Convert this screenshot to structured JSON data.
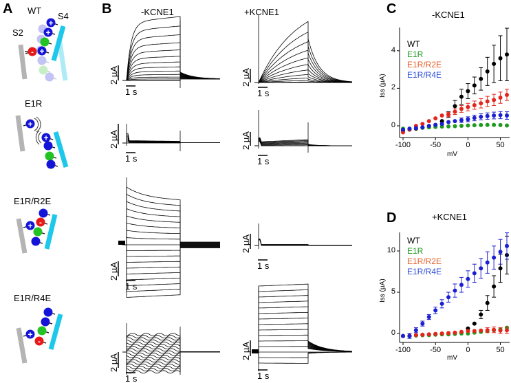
{
  "panels": {
    "A": {
      "letter": "A",
      "wt": "WT",
      "s4": "S4",
      "s2": "S2",
      "e1r": "E1R",
      "e1r_r2e": "E1R/R2E",
      "e1r_r4e": "E1R/R4E",
      "plus": "+",
      "minus": "-"
    },
    "B": {
      "letter": "B",
      "col1": "-KCNE1",
      "col2": "+KCNE1",
      "scale_current": "2 µA",
      "scale_time": "1 s"
    },
    "C": {
      "letter": "C"
    },
    "D": {
      "letter": "D"
    }
  },
  "colors": {
    "WT": "#000000",
    "E1R": "#1f9a1f",
    "E1R/R2E": "#e3261c",
    "E1R/R4E": "#1a1fd0",
    "E1R/R2E_legend": "#e8602c",
    "E1R/R4E_legend": "#2f4fd8",
    "S4": "#1ec8ea",
    "S2": "#b4b4b4"
  },
  "chart_data": [
    {
      "type": "scatter",
      "title": "-KCNE1",
      "xlabel": "mV",
      "ylabel": "Iss (µA)",
      "xlim": [
        -100,
        60
      ],
      "ylim": [
        -0.6,
        5.2
      ],
      "xticks": [
        -100,
        -50,
        0,
        50
      ],
      "yticks": [
        0,
        2,
        4
      ],
      "legend": "top-left",
      "x": [
        -100,
        -90,
        -80,
        -70,
        -60,
        -50,
        -40,
        -30,
        -20,
        -10,
        0,
        10,
        20,
        30,
        40,
        50,
        60
      ],
      "series": [
        {
          "name": "WT",
          "values": [
            -0.25,
            -0.2,
            -0.15,
            -0.1,
            -0.05,
            0.05,
            0.25,
            0.6,
            1.05,
            1.55,
            1.85,
            2.15,
            2.5,
            2.9,
            3.3,
            3.6,
            3.8
          ],
          "errors": [
            0.05,
            0.05,
            0.05,
            0.05,
            0.05,
            0.05,
            0.08,
            0.15,
            0.3,
            0.4,
            0.4,
            0.45,
            0.6,
            0.75,
            1.0,
            1.2,
            1.4
          ]
        },
        {
          "name": "E1R",
          "values": [
            -0.15,
            -0.15,
            -0.12,
            -0.1,
            -0.08,
            -0.06,
            -0.04,
            -0.03,
            -0.02,
            0,
            0.02,
            0.03,
            0.04,
            0.05,
            0.05,
            0.04,
            0.02
          ],
          "errors": [
            0.03,
            0.03,
            0.03,
            0.03,
            0.03,
            0.03,
            0.03,
            0.03,
            0.03,
            0.03,
            0.03,
            0.03,
            0.03,
            0.03,
            0.03,
            0.03,
            0.03
          ]
        },
        {
          "name": "E1R/R2E",
          "values": [
            -0.35,
            -0.2,
            0,
            0.1,
            0.25,
            0.4,
            0.55,
            0.6,
            0.75,
            0.9,
            1.0,
            1.1,
            1.2,
            1.3,
            1.38,
            1.5,
            1.65
          ],
          "errors": [
            0.05,
            0.05,
            0.05,
            0.05,
            0.06,
            0.08,
            0.1,
            0.12,
            0.15,
            0.18,
            0.2,
            0.22,
            0.25,
            0.27,
            0.3,
            0.3,
            0.3
          ]
        },
        {
          "name": "E1R/R4E",
          "values": [
            -0.2,
            -0.15,
            -0.12,
            -0.08,
            0,
            0.05,
            0.1,
            0.2,
            0.25,
            0.3,
            0.35,
            0.42,
            0.48,
            0.52,
            0.55,
            0.57,
            0.55
          ],
          "errors": [
            0.04,
            0.04,
            0.04,
            0.04,
            0.05,
            0.06,
            0.07,
            0.08,
            0.1,
            0.12,
            0.13,
            0.15,
            0.16,
            0.17,
            0.18,
            0.19,
            0.2
          ]
        }
      ]
    },
    {
      "type": "scatter",
      "title": "+KCNE1",
      "xlabel": "mV",
      "ylabel": "Iss (µA)",
      "xlim": [
        -100,
        60
      ],
      "ylim": [
        -1.1,
        12.2
      ],
      "xticks": [
        -100,
        -50,
        0,
        50
      ],
      "yticks": [
        0,
        5,
        10
      ],
      "legend": "top-left",
      "x": [
        -100,
        -90,
        -80,
        -70,
        -60,
        -50,
        -40,
        -30,
        -20,
        -10,
        0,
        10,
        20,
        30,
        40,
        50,
        60
      ],
      "series": [
        {
          "name": "WT",
          "values": [
            -0.3,
            -0.3,
            -0.2,
            -0.2,
            -0.15,
            -0.1,
            -0.05,
            0,
            0.05,
            0.1,
            0.6,
            1.2,
            2.3,
            3.7,
            5.7,
            7.9,
            9.5
          ],
          "errors": [
            0.1,
            0.1,
            0.1,
            0.1,
            0.1,
            0.1,
            0.1,
            0.1,
            0.1,
            0.1,
            0.15,
            0.25,
            0.5,
            0.9,
            1.3,
            1.7,
            2.3
          ]
        },
        {
          "name": "E1R",
          "values": [
            -0.3,
            -0.3,
            -0.25,
            -0.2,
            -0.2,
            -0.15,
            -0.1,
            -0.1,
            -0.05,
            0,
            0,
            0.1,
            0.2,
            0.3,
            0.4,
            0.5,
            0.7
          ],
          "errors": [
            0.1,
            0.1,
            0.1,
            0.1,
            0.1,
            0.1,
            0.1,
            0.1,
            0.1,
            0.1,
            0.1,
            0.1,
            0.1,
            0.15,
            0.2,
            0.2,
            0.2
          ]
        },
        {
          "name": "E1R/R2E",
          "values": [
            -0.3,
            -0.25,
            -0.2,
            -0.15,
            -0.1,
            -0.05,
            0,
            0.05,
            0.1,
            0.2,
            0.3,
            0.3,
            0.35,
            0.4,
            0.45,
            0.35,
            0.4
          ],
          "errors": [
            0.1,
            0.1,
            0.1,
            0.1,
            0.1,
            0.1,
            0.1,
            0.1,
            0.15,
            0.15,
            0.2,
            0.2,
            0.25,
            0.3,
            0.35,
            0.35,
            0.4
          ]
        },
        {
          "name": "E1R/R4E",
          "values": [
            -0.3,
            -0.3,
            0.4,
            1.2,
            2.0,
            2.8,
            3.6,
            4.4,
            5.2,
            5.9,
            6.6,
            7.3,
            7.9,
            8.6,
            9.2,
            9.9,
            10.6
          ],
          "errors": [
            0.2,
            0.3,
            0.3,
            0.3,
            0.3,
            0.4,
            0.5,
            0.6,
            0.8,
            0.9,
            1.0,
            1.1,
            1.2,
            1.3,
            1.4,
            1.5,
            1.6
          ]
        }
      ]
    }
  ]
}
